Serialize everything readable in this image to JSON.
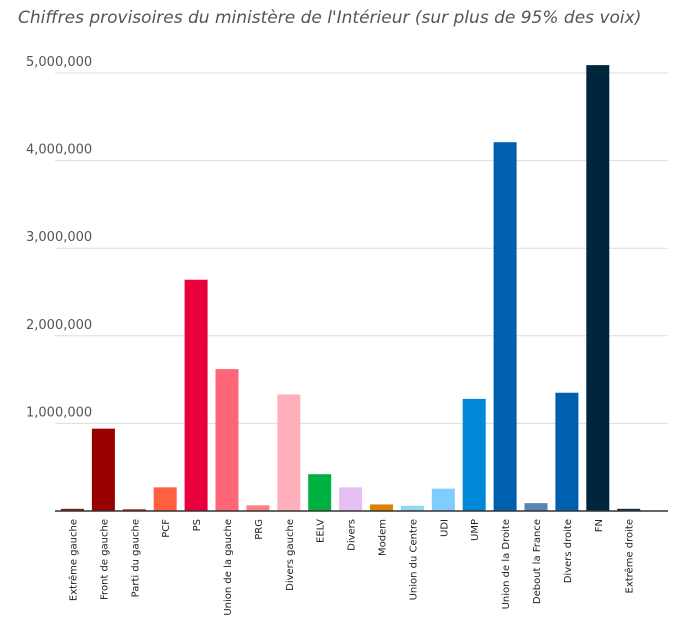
{
  "chart_data": {
    "type": "bar",
    "title": "Chiffres provisoires du ministère de l'Intérieur (sur plus de 95% des voix)",
    "xlabel": "",
    "ylabel": "",
    "ylim": [
      0,
      5000000
    ],
    "yticks": [
      {
        "value": 1000000,
        "label": "1,000,000"
      },
      {
        "value": 2000000,
        "label": "2,000,000"
      },
      {
        "value": 3000000,
        "label": "3,000,000"
      },
      {
        "value": 4000000,
        "label": "4,000,000"
      },
      {
        "value": 5000000,
        "label": "5,000,000"
      }
    ],
    "grid": true,
    "legend": "none",
    "categories": [
      "Extrême gauche",
      "Front de gauche",
      "Parti du gauche",
      "PCF",
      "PS",
      "Union de la gauche",
      "PRG",
      "Divers gauche",
      "EELV",
      "Divers",
      "Modem",
      "Union du Centre",
      "UDI",
      "UMP",
      "Union de la Droite",
      "Debout la France",
      "Divers droite",
      "FN",
      "Extrême droite"
    ],
    "values": [
      25000,
      940000,
      20000,
      270000,
      2640000,
      1620000,
      65000,
      1330000,
      420000,
      270000,
      75000,
      60000,
      255000,
      1280000,
      4210000,
      90000,
      1350000,
      5090000,
      25000
    ],
    "colors": [
      "#8a1c1c",
      "#990000",
      "#b02020",
      "#ff6040",
      "#e8003c",
      "#ff6677",
      "#ff8080",
      "#ffb0ba",
      "#00b040",
      "#e5c0f0",
      "#e08000",
      "#90d8f0",
      "#80ccff",
      "#0088d8",
      "#0060b0",
      "#5a84b4",
      "#0060b0",
      "#00263e",
      "#103040"
    ]
  }
}
